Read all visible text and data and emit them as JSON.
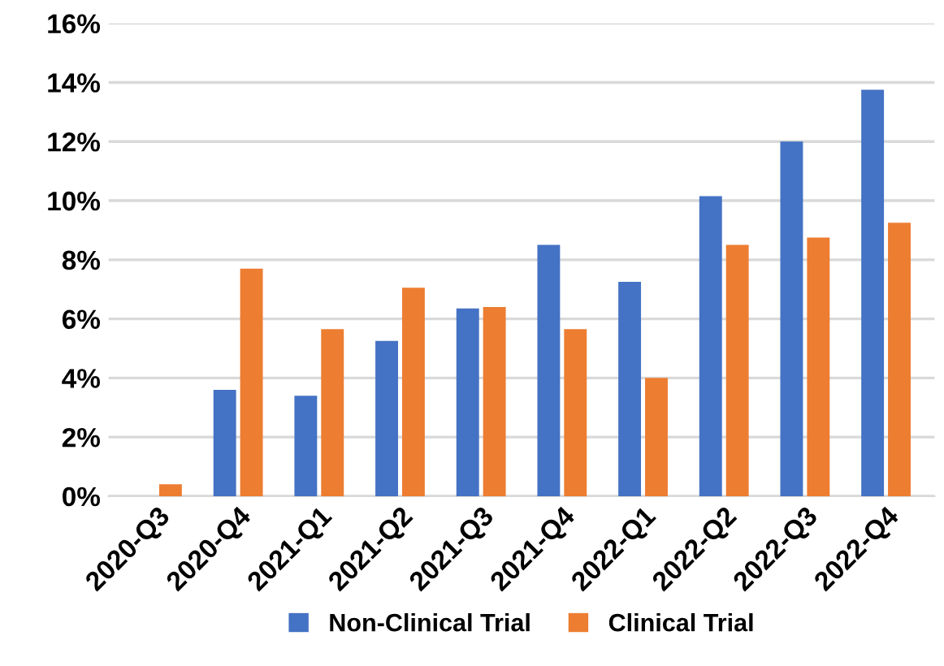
{
  "chart_data": {
    "type": "bar",
    "categories": [
      "2020-Q3",
      "2020-Q4",
      "2021-Q1",
      "2021-Q2",
      "2021-Q3",
      "2021-Q4",
      "2022-Q1",
      "2022-Q2",
      "2022-Q3",
      "2022-Q4"
    ],
    "series": [
      {
        "name": "Non-Clinical Trial",
        "color": "#4472c4",
        "values": [
          0,
          3.6,
          3.4,
          5.25,
          6.35,
          8.5,
          7.25,
          10.15,
          12.0,
          13.75
        ]
      },
      {
        "name": "Clinical Trial",
        "color": "#ed7d31",
        "values": [
          0.4,
          7.7,
          5.65,
          7.05,
          6.4,
          5.65,
          4.0,
          8.5,
          8.75,
          9.25
        ]
      }
    ],
    "ylim": [
      0,
      16
    ],
    "yticks": [
      {
        "value": 0,
        "label": "0%"
      },
      {
        "value": 2,
        "label": "2%"
      },
      {
        "value": 4,
        "label": "4%"
      },
      {
        "value": 6,
        "label": "6%"
      },
      {
        "value": 8,
        "label": "8%"
      },
      {
        "value": 10,
        "label": "10%"
      },
      {
        "value": 12,
        "label": "12%"
      },
      {
        "value": 14,
        "label": "14%"
      },
      {
        "value": 16,
        "label": "16%"
      }
    ],
    "grid": "y",
    "legend": "bottom"
  }
}
